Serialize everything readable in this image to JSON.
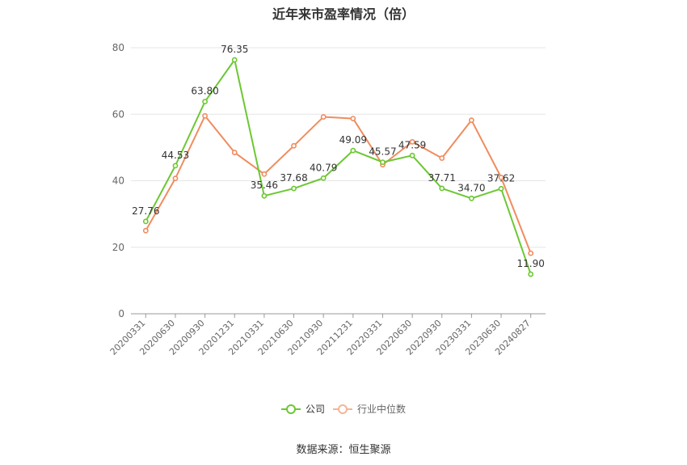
{
  "chart_data": {
    "type": "line",
    "title": "近年来市盈率情况（倍）",
    "source": "数据来源：恒生聚源",
    "ylim": [
      0,
      80
    ],
    "yticks": [
      0,
      20,
      40,
      60,
      80
    ],
    "grid": true,
    "legend_position": "bottom",
    "categories": [
      "20200331",
      "20200630",
      "20200930",
      "20201231",
      "20210331",
      "20210630",
      "20210930",
      "20211231",
      "20220331",
      "20220630",
      "20220930",
      "20230331",
      "20230630",
      "20240827"
    ],
    "series": [
      {
        "name": "公司",
        "color": "#6cc832",
        "values": [
          27.76,
          44.53,
          63.8,
          76.35,
          35.46,
          37.68,
          40.79,
          49.09,
          45.57,
          47.59,
          37.71,
          34.7,
          37.62,
          11.9
        ],
        "labels": [
          "27.76",
          "44.53",
          "63.80",
          "76.35",
          "35.46",
          "37.68",
          "40.79",
          "49.09",
          "45.57",
          "47.59",
          "37.71",
          "34.70",
          "37.62",
          "11.90"
        ]
      },
      {
        "name": "行业中位数",
        "color": "#f08c5f",
        "values": [
          25.0,
          40.7,
          59.5,
          48.5,
          42.0,
          50.5,
          59.2,
          58.7,
          44.8,
          51.7,
          46.8,
          58.2,
          41.0,
          18.2
        ]
      }
    ]
  }
}
